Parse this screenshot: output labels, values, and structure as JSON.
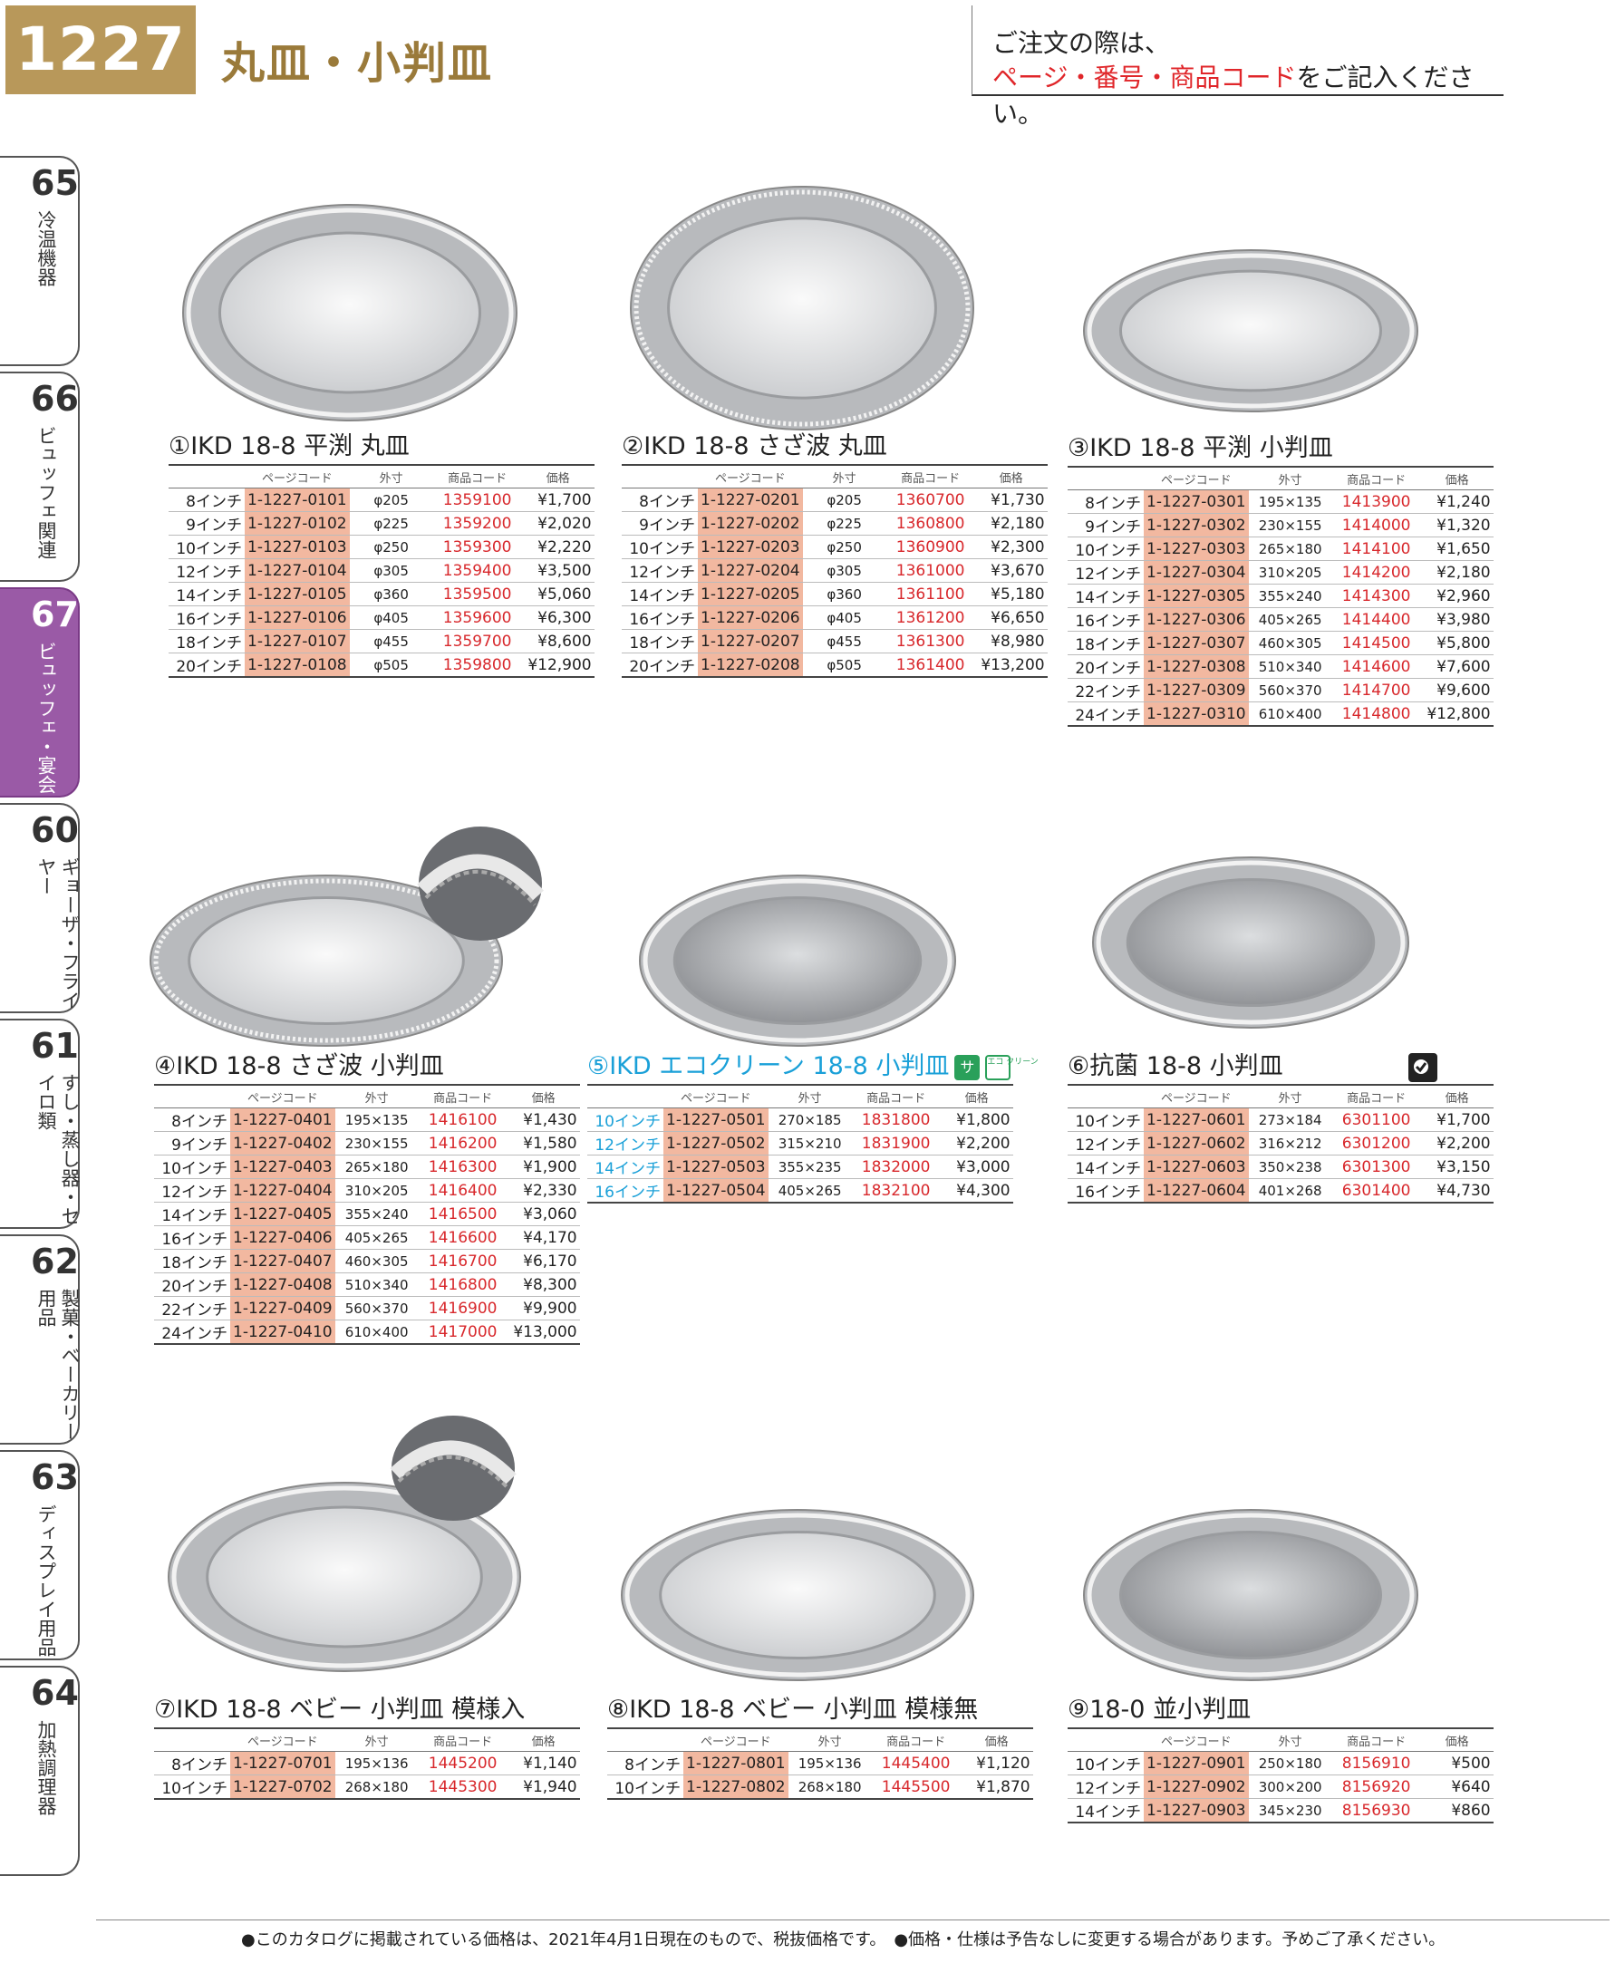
{
  "header": {
    "page_number": "1227",
    "title": "丸皿・小判皿",
    "order_line1": "ご注文の際は、",
    "order_line2_red": "ページ・番号・商品コード",
    "order_line2_rest": "をご記入ください。"
  },
  "side_tabs": [
    {
      "num": "65",
      "label": "冷温機器"
    },
    {
      "num": "66",
      "label": "ビュッフェ関連"
    },
    {
      "num": "67",
      "label": "ビュッフェ・宴会"
    },
    {
      "num": "60",
      "label": "ギョーザ・フライヤー"
    },
    {
      "num": "61",
      "label": "すし・蒸し器・セイロ類"
    },
    {
      "num": "62",
      "label": "製菓・ベーカリー用品"
    },
    {
      "num": "63",
      "label": "ディスプレイ用品"
    },
    {
      "num": "64",
      "label": "加熱調理器"
    }
  ],
  "table_headers": {
    "page_code": "ページコード",
    "size": "外寸",
    "product_code": "商品コード",
    "price": "価格"
  },
  "products": [
    {
      "title": "①IKD 18-8 平渕 丸皿",
      "rows": [
        [
          "8インチ",
          "1-1227-0101",
          "φ205",
          "1359100",
          "¥1,700"
        ],
        [
          "9インチ",
          "1-1227-0102",
          "φ225",
          "1359200",
          "¥2,020"
        ],
        [
          "10インチ",
          "1-1227-0103",
          "φ250",
          "1359300",
          "¥2,220"
        ],
        [
          "12インチ",
          "1-1227-0104",
          "φ305",
          "1359400",
          "¥3,500"
        ],
        [
          "14インチ",
          "1-1227-0105",
          "φ360",
          "1359500",
          "¥5,060"
        ],
        [
          "16インチ",
          "1-1227-0106",
          "φ405",
          "1359600",
          "¥6,300"
        ],
        [
          "18インチ",
          "1-1227-0107",
          "φ455",
          "1359700",
          "¥8,600"
        ],
        [
          "20インチ",
          "1-1227-0108",
          "φ505",
          "1359800",
          "¥12,900"
        ]
      ]
    },
    {
      "title": "②IKD 18-8 さざ波 丸皿",
      "rows": [
        [
          "8インチ",
          "1-1227-0201",
          "φ205",
          "1360700",
          "¥1,730"
        ],
        [
          "9インチ",
          "1-1227-0202",
          "φ225",
          "1360800",
          "¥2,180"
        ],
        [
          "10インチ",
          "1-1227-0203",
          "φ250",
          "1360900",
          "¥2,300"
        ],
        [
          "12インチ",
          "1-1227-0204",
          "φ305",
          "1361000",
          "¥3,670"
        ],
        [
          "14インチ",
          "1-1227-0205",
          "φ360",
          "1361100",
          "¥5,180"
        ],
        [
          "16インチ",
          "1-1227-0206",
          "φ405",
          "1361200",
          "¥6,650"
        ],
        [
          "18インチ",
          "1-1227-0207",
          "φ455",
          "1361300",
          "¥8,980"
        ],
        [
          "20インチ",
          "1-1227-0208",
          "φ505",
          "1361400",
          "¥13,200"
        ]
      ]
    },
    {
      "title": "③IKD 18-8 平渕 小判皿",
      "rows": [
        [
          "8インチ",
          "1-1227-0301",
          "195×135",
          "1413900",
          "¥1,240"
        ],
        [
          "9インチ",
          "1-1227-0302",
          "230×155",
          "1414000",
          "¥1,320"
        ],
        [
          "10インチ",
          "1-1227-0303",
          "265×180",
          "1414100",
          "¥1,650"
        ],
        [
          "12インチ",
          "1-1227-0304",
          "310×205",
          "1414200",
          "¥2,180"
        ],
        [
          "14インチ",
          "1-1227-0305",
          "355×240",
          "1414300",
          "¥2,960"
        ],
        [
          "16インチ",
          "1-1227-0306",
          "405×265",
          "1414400",
          "¥3,980"
        ],
        [
          "18インチ",
          "1-1227-0307",
          "460×305",
          "1414500",
          "¥5,800"
        ],
        [
          "20インチ",
          "1-1227-0308",
          "510×340",
          "1414600",
          "¥7,600"
        ],
        [
          "22インチ",
          "1-1227-0309",
          "560×370",
          "1414700",
          "¥9,600"
        ],
        [
          "24インチ",
          "1-1227-0310",
          "610×400",
          "1414800",
          "¥12,800"
        ]
      ]
    },
    {
      "title": "④IKD 18-8 さざ波 小判皿",
      "rows": [
        [
          "8インチ",
          "1-1227-0401",
          "195×135",
          "1416100",
          "¥1,430"
        ],
        [
          "9インチ",
          "1-1227-0402",
          "230×155",
          "1416200",
          "¥1,580"
        ],
        [
          "10インチ",
          "1-1227-0403",
          "265×180",
          "1416300",
          "¥1,900"
        ],
        [
          "12インチ",
          "1-1227-0404",
          "310×205",
          "1416400",
          "¥2,330"
        ],
        [
          "14インチ",
          "1-1227-0405",
          "355×240",
          "1416500",
          "¥3,060"
        ],
        [
          "16インチ",
          "1-1227-0406",
          "405×265",
          "1416600",
          "¥4,170"
        ],
        [
          "18インチ",
          "1-1227-0407",
          "460×305",
          "1416700",
          "¥6,170"
        ],
        [
          "20インチ",
          "1-1227-0408",
          "510×340",
          "1416800",
          "¥8,300"
        ],
        [
          "22インチ",
          "1-1227-0409",
          "560×370",
          "1416900",
          "¥9,900"
        ],
        [
          "24インチ",
          "1-1227-0410",
          "610×400",
          "1417000",
          "¥13,000"
        ]
      ]
    },
    {
      "title": "⑤IKD エコクリーン 18-8 小判皿",
      "eco": true,
      "rows": [
        [
          "10インチ",
          "1-1227-0501",
          "270×185",
          "1831800",
          "¥1,800"
        ],
        [
          "12インチ",
          "1-1227-0502",
          "315×210",
          "1831900",
          "¥2,200"
        ],
        [
          "14インチ",
          "1-1227-0503",
          "355×235",
          "1832000",
          "¥3,000"
        ],
        [
          "16インチ",
          "1-1227-0504",
          "405×265",
          "1832100",
          "¥4,300"
        ]
      ]
    },
    {
      "title": "⑥抗菌 18-8 小判皿",
      "rows": [
        [
          "10インチ",
          "1-1227-0601",
          "273×184",
          "6301100",
          "¥1,700"
        ],
        [
          "12インチ",
          "1-1227-0602",
          "316×212",
          "6301200",
          "¥2,200"
        ],
        [
          "14インチ",
          "1-1227-0603",
          "350×238",
          "6301300",
          "¥3,150"
        ],
        [
          "16インチ",
          "1-1227-0604",
          "401×268",
          "6301400",
          "¥4,730"
        ]
      ]
    },
    {
      "title": "⑦IKD 18-8 ベビー 小判皿 模様入",
      "rows": [
        [
          "8インチ",
          "1-1227-0701",
          "195×136",
          "1445200",
          "¥1,140"
        ],
        [
          "10インチ",
          "1-1227-0702",
          "268×180",
          "1445300",
          "¥1,940"
        ]
      ]
    },
    {
      "title": "⑧IKD 18-8 ベビー 小判皿 模様無",
      "rows": [
        [
          "8インチ",
          "1-1227-0801",
          "195×136",
          "1445400",
          "¥1,120"
        ],
        [
          "10インチ",
          "1-1227-0802",
          "268×180",
          "1445500",
          "¥1,870"
        ]
      ]
    },
    {
      "title": "⑨18-0 並小判皿",
      "rows": [
        [
          "10インチ",
          "1-1227-0901",
          "250×180",
          "8156910",
          "¥500"
        ],
        [
          "12インチ",
          "1-1227-0902",
          "300×200",
          "8156920",
          "¥640"
        ],
        [
          "14インチ",
          "1-1227-0903",
          "345×230",
          "8156930",
          "¥860"
        ]
      ]
    }
  ],
  "eco_badge": {
    "left": "サ",
    "right": "エコ クリーン"
  },
  "icons": {
    "eco": "eco-clean-badge-icon",
    "antibacterial": "antibacterial-mark-icon"
  },
  "colors": {
    "gold": "#b8985a",
    "accent_red": "#e0262a",
    "code_bg": "#f2b8a0",
    "tab_active": "#9a5aa6",
    "cyan": "#1aa0d8"
  },
  "footer": "●このカタログに掲載されている価格は、2021年4月1日現在のもので、税抜価格です。　●価格・仕様は予告なしに変更する場合があります。予めご了承ください。"
}
